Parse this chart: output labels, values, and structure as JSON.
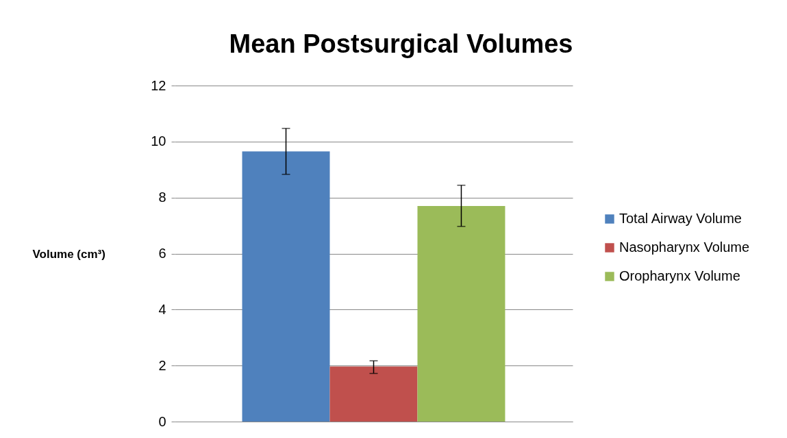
{
  "chart_data": {
    "type": "bar",
    "title": "Mean Postsurgical Volumes",
    "ylabel": "Volume (cm³)",
    "categories": [
      null
    ],
    "series": [
      {
        "name": "Total Airway Volume",
        "color": "#4f81bd",
        "values": [
          9.65
        ],
        "errors": [
          [
            8.83,
            10.47
          ]
        ]
      },
      {
        "name": "Nasopharynx Volume",
        "color": "#c0504d",
        "values": [
          1.97
        ],
        "errors": [
          [
            1.72,
            2.17
          ]
        ]
      },
      {
        "name": "Oropharynx Volume",
        "color": "#9bbb59",
        "values": [
          7.7
        ],
        "errors": [
          [
            6.97,
            8.44
          ]
        ]
      }
    ],
    "ylim": [
      0,
      12
    ],
    "yticks": [
      0,
      2,
      4,
      6,
      8,
      10,
      12
    ],
    "grid": "y",
    "legend": "right"
  }
}
